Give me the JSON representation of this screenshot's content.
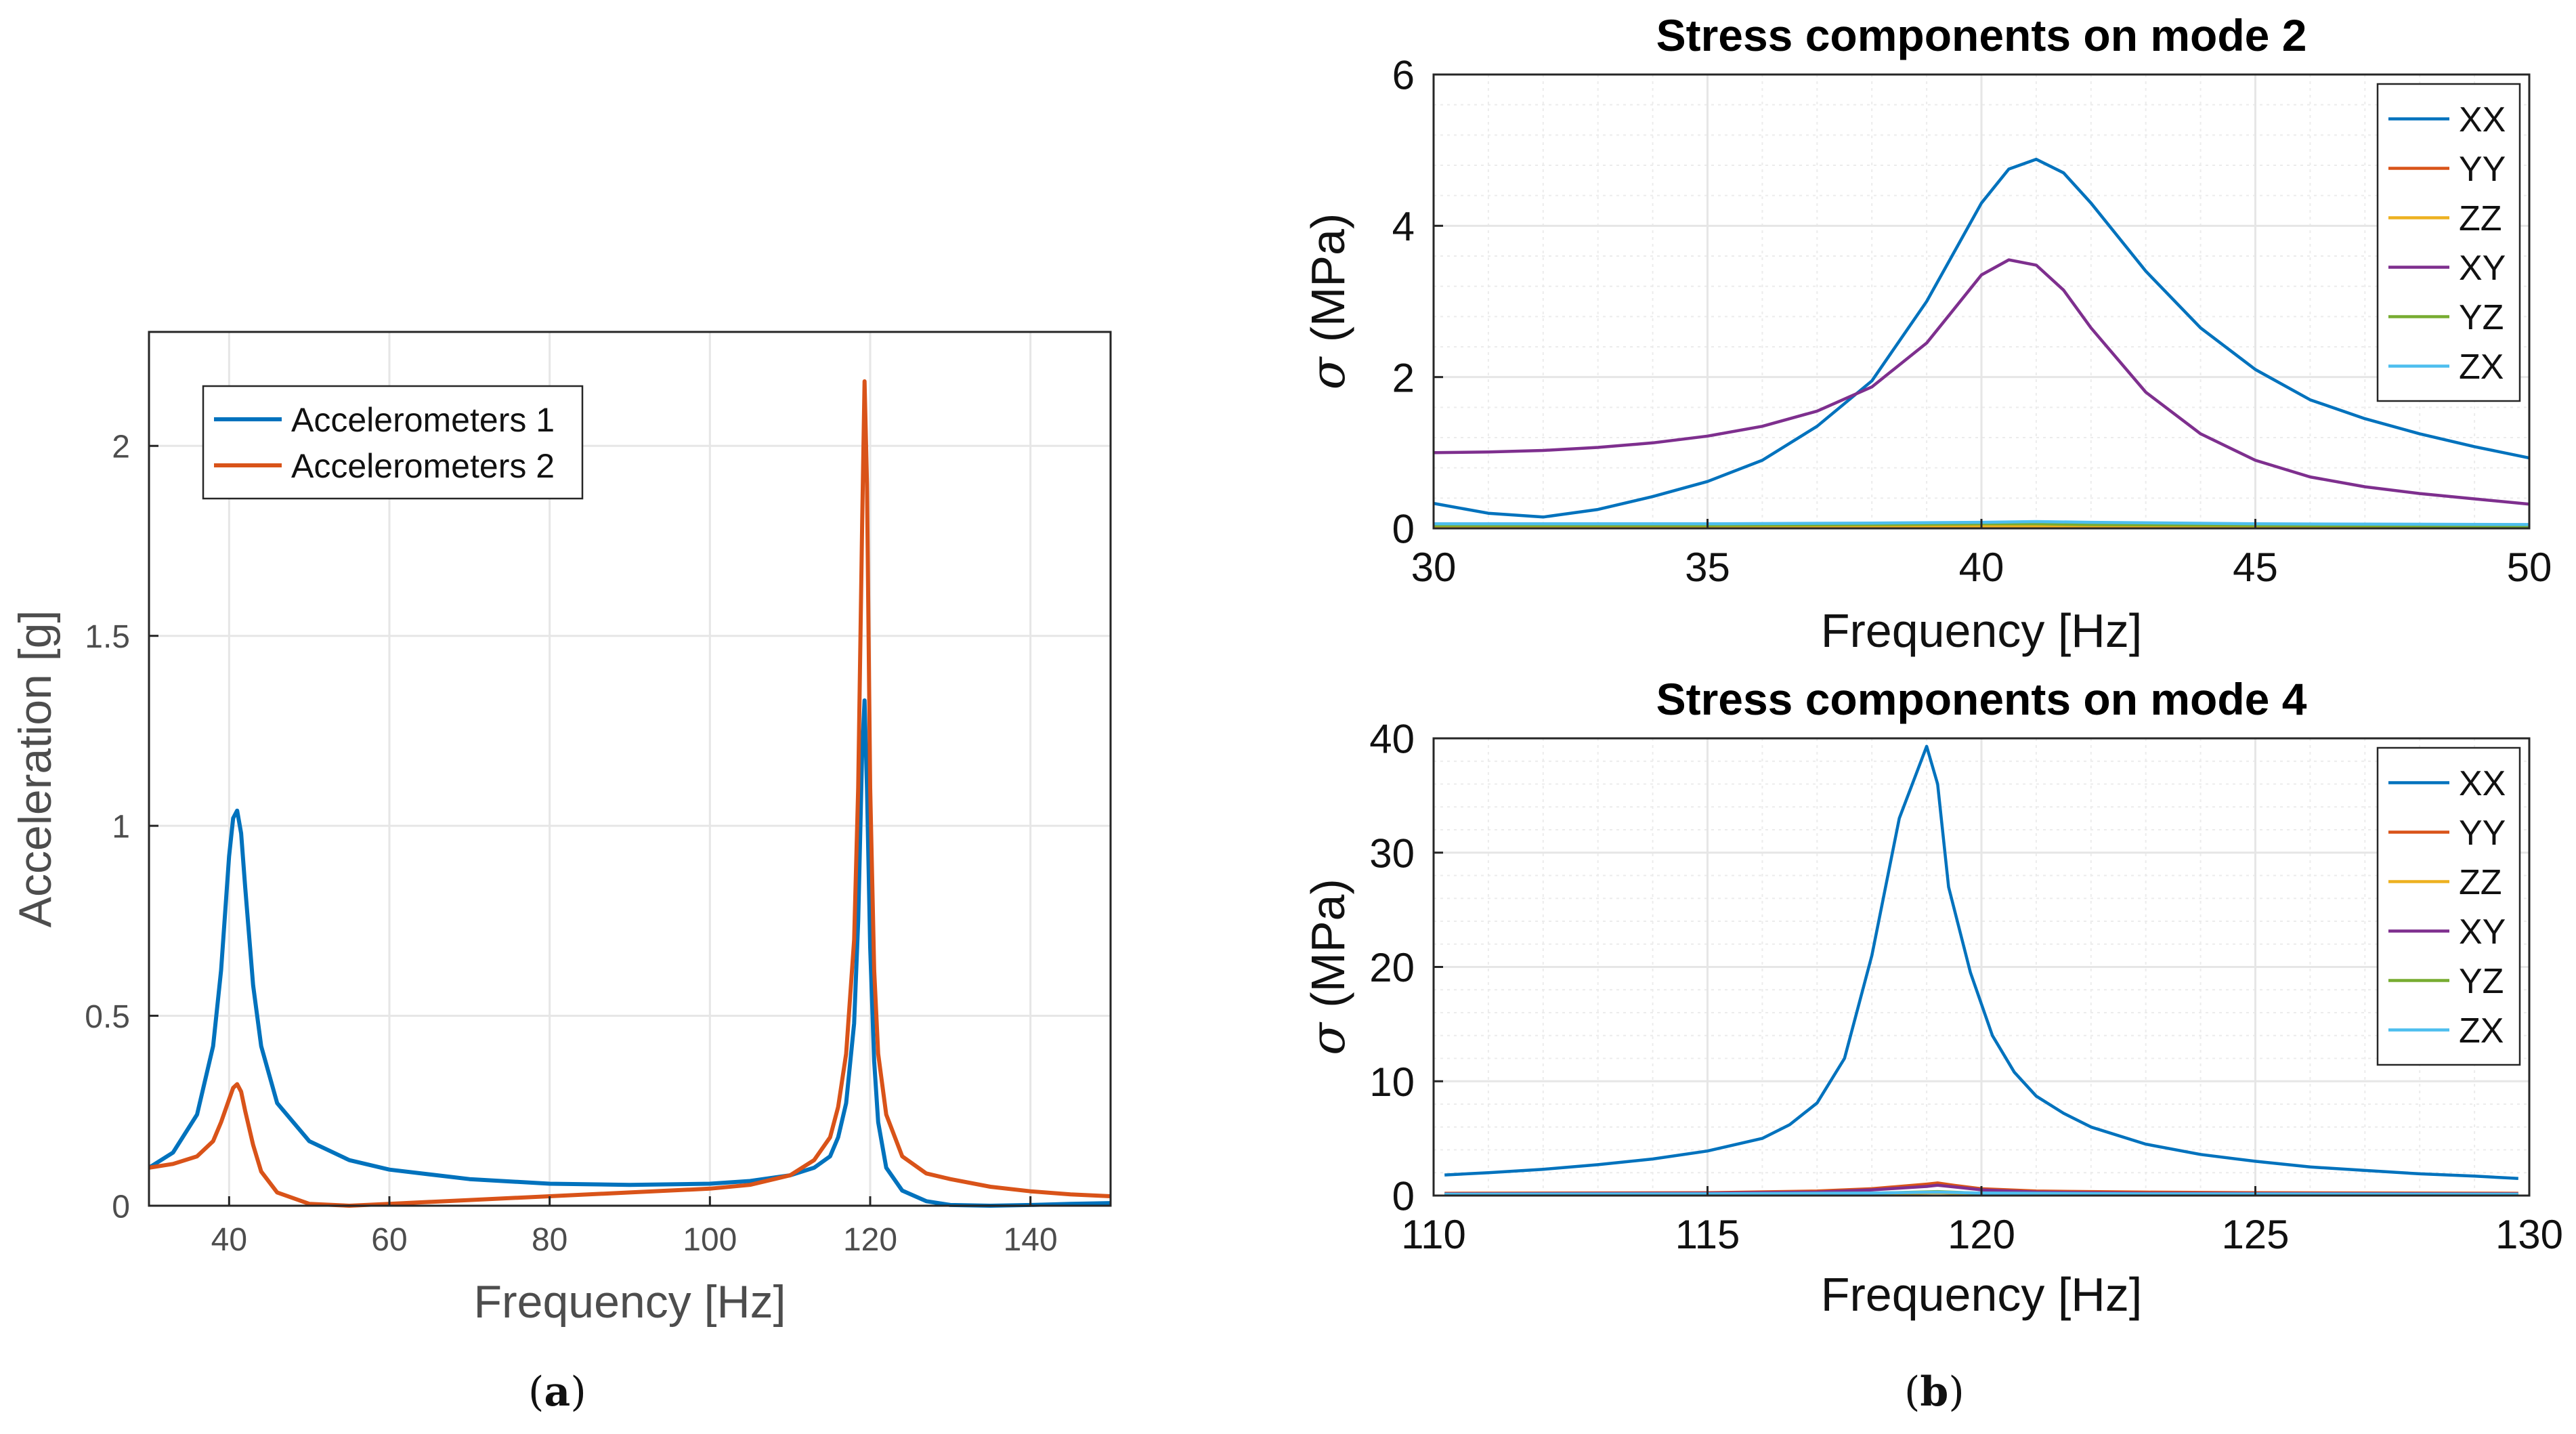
{
  "colors": {
    "blue": "#0072BD",
    "orange": "#D95319",
    "yellow": "#EDB120",
    "purple": "#7E2F8E",
    "green": "#77AC30",
    "cyan": "#4DBEEE",
    "grid": "#e6e6e6",
    "axis": "#262626",
    "tick_text": "#4d4d4d"
  },
  "captions": {
    "a_open": "(",
    "a_letter": "a",
    "a_close": ")",
    "b_open": "(",
    "b_letter": "b",
    "b_close": ")"
  },
  "chart_data": [
    {
      "id": "accel",
      "type": "line",
      "title": "",
      "xlabel": "Frequency [Hz]",
      "ylabel": "Acceleration [g]",
      "xlim": [
        30,
        150
      ],
      "ylim": [
        0,
        2.3
      ],
      "xticks": [
        40,
        60,
        80,
        100,
        120,
        140
      ],
      "yticks": [
        0,
        0.5,
        1,
        1.5,
        2
      ],
      "ytick_labels": [
        "0",
        "0.5",
        "1",
        "1.5",
        "2"
      ],
      "grid": true,
      "legend_position": "top-left",
      "series": [
        {
          "name": "Accelerometers 1",
          "color": "#0072BD",
          "x": [
            30,
            33,
            36,
            38,
            39,
            40,
            40.5,
            41,
            41.5,
            42,
            43,
            44,
            46,
            50,
            55,
            60,
            70,
            80,
            90,
            100,
            105,
            110,
            113,
            115,
            116,
            117,
            118,
            118.5,
            119,
            119.3,
            119.6,
            120,
            120.5,
            121,
            122,
            124,
            127,
            130,
            135,
            140,
            145,
            150
          ],
          "y": [
            0.1,
            0.14,
            0.24,
            0.42,
            0.62,
            0.92,
            1.02,
            1.04,
            0.98,
            0.84,
            0.58,
            0.42,
            0.27,
            0.17,
            0.12,
            0.095,
            0.07,
            0.058,
            0.055,
            0.058,
            0.065,
            0.08,
            0.1,
            0.13,
            0.18,
            0.27,
            0.48,
            0.75,
            1.2,
            1.33,
            1.1,
            0.68,
            0.38,
            0.22,
            0.1,
            0.04,
            0.012,
            0.002,
            0.0,
            0.002,
            0.005,
            0.007
          ]
        },
        {
          "name": "Accelerometers 2",
          "color": "#D95319",
          "x": [
            30,
            33,
            36,
            38,
            39,
            40,
            40.5,
            41,
            41.5,
            42,
            43,
            44,
            46,
            50,
            55,
            60,
            70,
            80,
            90,
            100,
            105,
            110,
            113,
            115,
            116,
            117,
            118,
            118.5,
            119,
            119.3,
            119.6,
            120,
            120.5,
            121,
            122,
            124,
            127,
            130,
            135,
            140,
            145,
            150
          ],
          "y": [
            0.1,
            0.11,
            0.13,
            0.17,
            0.22,
            0.28,
            0.31,
            0.32,
            0.3,
            0.25,
            0.16,
            0.09,
            0.035,
            0.005,
            0.0,
            0.005,
            0.015,
            0.025,
            0.035,
            0.045,
            0.055,
            0.08,
            0.12,
            0.18,
            0.26,
            0.4,
            0.7,
            1.1,
            1.8,
            2.17,
            1.9,
            1.1,
            0.62,
            0.4,
            0.24,
            0.13,
            0.085,
            0.07,
            0.05,
            0.038,
            0.03,
            0.025
          ]
        }
      ]
    },
    {
      "id": "mode2",
      "type": "line",
      "title": "Stress components on mode 2",
      "xlabel": "Frequency [Hz]",
      "ylabel": "(MPa)",
      "ylabel_symbol": "σ",
      "xlim": [
        30,
        50
      ],
      "ylim": [
        0,
        6
      ],
      "xticks": [
        30,
        35,
        40,
        45,
        50
      ],
      "yticks": [
        0,
        2,
        4,
        6
      ],
      "grid": true,
      "minor_grid": true,
      "legend_position": "top-right",
      "series": [
        {
          "name": "XX",
          "color": "#0072BD",
          "x": [
            30,
            31,
            32,
            33,
            34,
            35,
            36,
            37,
            38,
            39,
            39.5,
            40,
            40.5,
            41,
            41.5,
            42,
            43,
            44,
            45,
            46,
            47,
            48,
            49,
            50
          ],
          "y": [
            0.33,
            0.2,
            0.15,
            0.25,
            0.42,
            0.62,
            0.9,
            1.35,
            1.95,
            3.0,
            3.65,
            4.3,
            4.75,
            4.88,
            4.7,
            4.3,
            3.4,
            2.65,
            2.1,
            1.7,
            1.45,
            1.25,
            1.08,
            0.93
          ]
        },
        {
          "name": "YY",
          "color": "#D95319",
          "x": [
            30,
            35,
            38,
            40,
            41,
            42,
            45,
            50
          ],
          "y": [
            0.03,
            0.03,
            0.04,
            0.05,
            0.06,
            0.05,
            0.03,
            0.02
          ]
        },
        {
          "name": "ZZ",
          "color": "#EDB120",
          "x": [
            30,
            35,
            38,
            40,
            41,
            42,
            45,
            50
          ],
          "y": [
            0.01,
            0.01,
            0.015,
            0.02,
            0.025,
            0.02,
            0.012,
            0.01
          ]
        },
        {
          "name": "XY",
          "color": "#7E2F8E",
          "x": [
            30,
            31,
            32,
            33,
            34,
            35,
            36,
            37,
            38,
            39,
            39.5,
            40,
            40.5,
            41,
            41.5,
            42,
            43,
            44,
            45,
            46,
            47,
            48,
            49,
            50
          ],
          "y": [
            1.0,
            1.01,
            1.03,
            1.07,
            1.13,
            1.22,
            1.35,
            1.55,
            1.87,
            2.45,
            2.9,
            3.35,
            3.55,
            3.48,
            3.15,
            2.65,
            1.8,
            1.25,
            0.9,
            0.68,
            0.55,
            0.46,
            0.39,
            0.32
          ]
        },
        {
          "name": "YZ",
          "color": "#77AC30",
          "x": [
            30,
            35,
            38,
            40,
            41,
            42,
            45,
            50
          ],
          "y": [
            0.04,
            0.04,
            0.05,
            0.06,
            0.06,
            0.05,
            0.04,
            0.03
          ]
        },
        {
          "name": "ZX",
          "color": "#4DBEEE",
          "x": [
            30,
            35,
            38,
            40,
            41,
            42,
            45,
            50
          ],
          "y": [
            0.06,
            0.06,
            0.07,
            0.08,
            0.09,
            0.08,
            0.06,
            0.05
          ]
        }
      ]
    },
    {
      "id": "mode4",
      "type": "line",
      "title": "Stress components on mode 4",
      "xlabel": "Frequency [Hz]",
      "ylabel": "(MPa)",
      "ylabel_symbol": "σ",
      "xlim": [
        110,
        130
      ],
      "ylim": [
        0,
        40
      ],
      "xticks": [
        110,
        115,
        120,
        125,
        130
      ],
      "yticks": [
        0,
        10,
        20,
        30,
        40
      ],
      "grid": true,
      "minor_grid": true,
      "legend_position": "top-right",
      "series": [
        {
          "name": "XX",
          "color": "#0072BD",
          "x": [
            110.2,
            111,
            112,
            113,
            114,
            115,
            116,
            116.5,
            117,
            117.5,
            118,
            118.5,
            119,
            119.2,
            119.4,
            119.8,
            120.2,
            120.6,
            121,
            121.5,
            122,
            123,
            124,
            125,
            126,
            127,
            128,
            129,
            129.8
          ],
          "y": [
            1.8,
            2.0,
            2.3,
            2.7,
            3.2,
            3.9,
            5.0,
            6.2,
            8.1,
            12.0,
            21.0,
            33.0,
            39.3,
            36.0,
            27.0,
            19.5,
            14.0,
            10.8,
            8.7,
            7.2,
            6.0,
            4.5,
            3.6,
            3.0,
            2.5,
            2.2,
            1.9,
            1.7,
            1.5
          ]
        },
        {
          "name": "YY",
          "color": "#D95319",
          "x": [
            110.2,
            115,
            117,
            118,
            119,
            119.2,
            119.5,
            120,
            121,
            123,
            125,
            129.8
          ],
          "y": [
            0.2,
            0.25,
            0.4,
            0.6,
            1.0,
            1.1,
            0.9,
            0.6,
            0.4,
            0.3,
            0.25,
            0.2
          ]
        },
        {
          "name": "ZZ",
          "color": "#EDB120",
          "x": [
            110.2,
            115,
            118,
            119.2,
            120,
            123,
            129.8
          ],
          "y": [
            0.05,
            0.08,
            0.15,
            0.25,
            0.15,
            0.08,
            0.05
          ]
        },
        {
          "name": "XY",
          "color": "#7E2F8E",
          "x": [
            110.2,
            115,
            117,
            118,
            119,
            119.2,
            119.5,
            120,
            121,
            123,
            125,
            129.8
          ],
          "y": [
            0.15,
            0.2,
            0.3,
            0.5,
            0.8,
            0.9,
            0.75,
            0.5,
            0.3,
            0.2,
            0.18,
            0.15
          ]
        },
        {
          "name": "YZ",
          "color": "#77AC30",
          "x": [
            110.2,
            115,
            118,
            119.2,
            120,
            123,
            129.8
          ],
          "y": [
            0.1,
            0.12,
            0.2,
            0.35,
            0.2,
            0.12,
            0.1
          ]
        },
        {
          "name": "ZX",
          "color": "#4DBEEE",
          "x": [
            110.2,
            115,
            118,
            119.2,
            120,
            123,
            129.8
          ],
          "y": [
            0.12,
            0.15,
            0.22,
            0.3,
            0.22,
            0.15,
            0.12
          ]
        }
      ]
    }
  ]
}
